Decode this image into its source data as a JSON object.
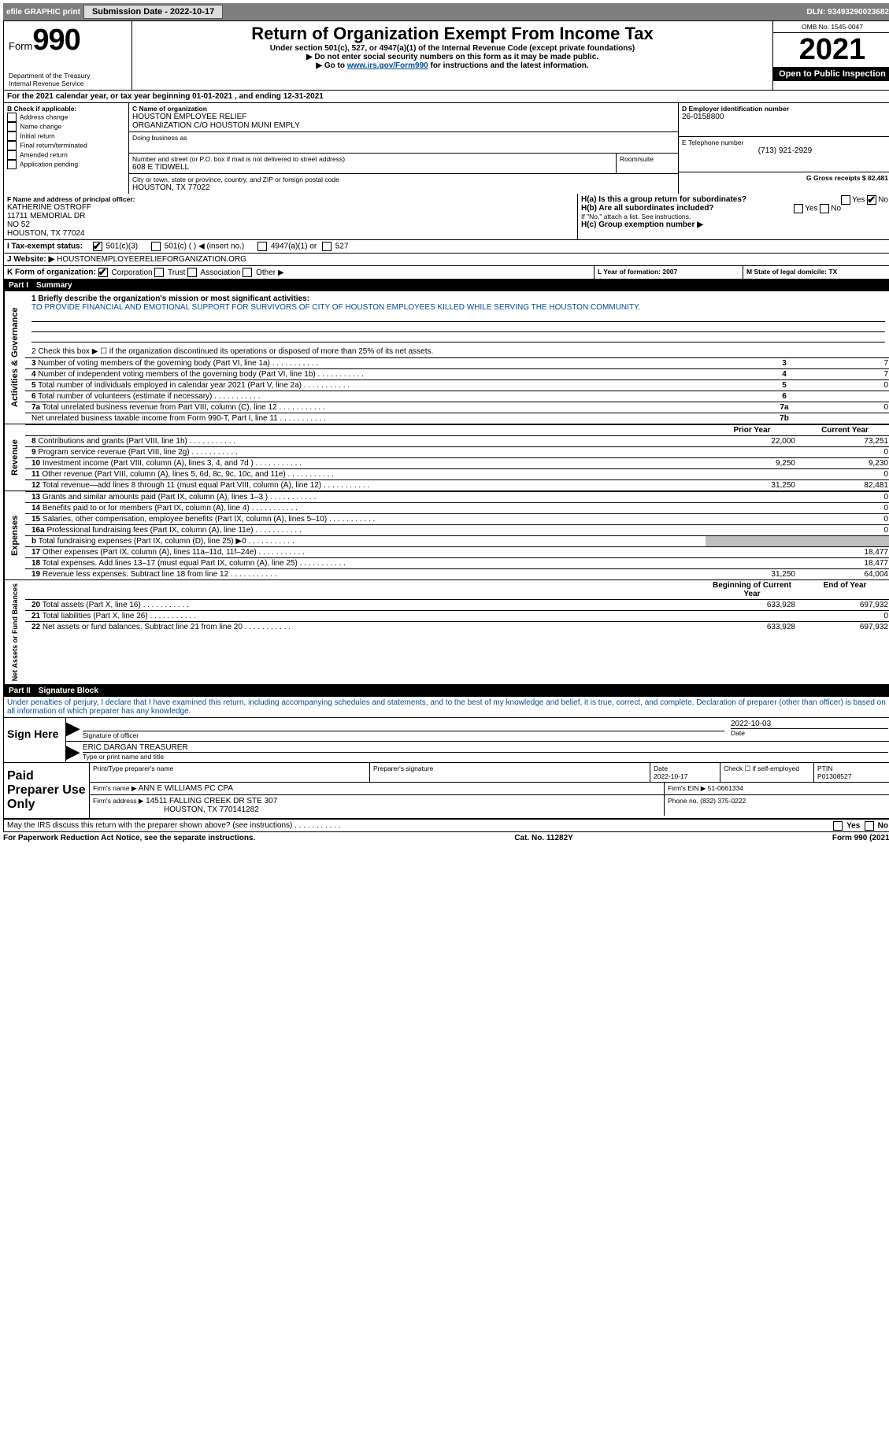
{
  "topbar": {
    "efile": "efile GRAPHIC print",
    "submission_label": "Submission Date - 2022-10-17",
    "dln_label": "DLN: 93493290023682"
  },
  "header": {
    "form_prefix": "Form",
    "form_number": "990",
    "dept": "Department of the Treasury",
    "irs": "Internal Revenue Service",
    "title": "Return of Organization Exempt From Income Tax",
    "subtitle": "Under section 501(c), 527, or 4947(a)(1) of the Internal Revenue Code (except private foundations)",
    "note1": "▶ Do not enter social security numbers on this form as it may be made public.",
    "note2_pre": "▶ Go to ",
    "note2_link": "www.irs.gov/Form990",
    "note2_post": " for instructions and the latest information.",
    "omb": "OMB No. 1545-0047",
    "year": "2021",
    "inspect": "Open to Public Inspection"
  },
  "line_a": "For the 2021 calendar year, or tax year beginning 01-01-2021    , and ending 12-31-2021",
  "section_b": {
    "header": "B Check if applicable:",
    "items": [
      "Address change",
      "Name change",
      "Initial return",
      "Final return/terminated",
      "Amended return",
      "Application pending"
    ]
  },
  "section_c": {
    "label_name": "C Name of organization",
    "name": "HOUSTON EMPLOYEE RELIEF",
    "name2": "ORGANIZATION C/O HOUSTON MUNI EMPLY",
    "dba_label": "Doing business as",
    "street_label": "Number and street (or P.O. box if mail is not delivered to street address)",
    "room_label": "Room/suite",
    "street": "608 E TIDWELL",
    "city_label": "City or town, state or province, country, and ZIP or foreign postal code",
    "city": "HOUSTON, TX  77022"
  },
  "section_d": {
    "label": "D Employer identification number",
    "value": "26-0158800"
  },
  "section_e": {
    "label": "E Telephone number",
    "value": "(713) 921-2929"
  },
  "section_g": {
    "label": "G Gross receipts $ 82,481"
  },
  "section_f": {
    "label": "F  Name and address of principal officer:",
    "name": "KATHERINE OSTROFF",
    "addr1": "11711 MEMORIAL DR",
    "addr2": "NO 52",
    "addr3": "HOUSTON, TX  77024"
  },
  "section_h": {
    "a": "H(a)  Is this a group return for subordinates?",
    "b": "H(b)  Are all subordinates included?",
    "note": "If \"No,\" attach a list. See instructions.",
    "c": "H(c)  Group exemption number ▶"
  },
  "section_i": {
    "label": "I    Tax-exempt status:",
    "opt1": "501(c)(3)",
    "opt2": "501(c) (  ) ◀ (insert no.)",
    "opt3": "4947(a)(1) or",
    "opt4": "527"
  },
  "section_j": {
    "label": "J   Website: ▶",
    "value": "HOUSTONEMPLOYEERELIEFORGANIZATION.ORG"
  },
  "section_k": {
    "label": "K Form of organization:",
    "opts": [
      "Corporation",
      "Trust",
      "Association",
      "Other ▶"
    ]
  },
  "section_l": {
    "label": "L Year of formation: 2007"
  },
  "section_m": {
    "label": "M State of legal domicile: TX"
  },
  "part1": {
    "header_label": "Part I",
    "header_title": "Summary",
    "line1_label": "1  Briefly describe the organization's mission or most significant activities:",
    "line1_text": "TO PROVIDE FINANCIAL AND EMOTIONAL SUPPORT FOR SURVIVORS OF CITY OF HOUSTON EMPLOYEES KILLED WHILE SERVING THE HOUSTON COMMUNITY.",
    "line2": "2   Check this box ▶ ☐  if the organization discontinued its operations or disposed of more than 25% of its net assets.",
    "gov_label": "Activities & Governance",
    "rows_gov": [
      {
        "n": "3",
        "t": "Number of voting members of the governing body (Part VI, line 1a)",
        "box": "3",
        "v": "7"
      },
      {
        "n": "4",
        "t": "Number of independent voting members of the governing body (Part VI, line 1b)",
        "box": "4",
        "v": "7"
      },
      {
        "n": "5",
        "t": "Total number of individuals employed in calendar year 2021 (Part V, line 2a)",
        "box": "5",
        "v": "0"
      },
      {
        "n": "6",
        "t": "Total number of volunteers (estimate if necessary)",
        "box": "6",
        "v": ""
      },
      {
        "n": "7a",
        "t": "Total unrelated business revenue from Part VIII, column (C), line 12",
        "box": "7a",
        "v": "0"
      },
      {
        "n": "",
        "t": "Net unrelated business taxable income from Form 990-T, Part I, line 11",
        "box": "7b",
        "v": ""
      }
    ],
    "col_prior": "Prior Year",
    "col_current": "Current Year",
    "rev_label": "Revenue",
    "rows_rev": [
      {
        "n": "8",
        "t": "Contributions and grants (Part VIII, line 1h)",
        "p": "22,000",
        "c": "73,251"
      },
      {
        "n": "9",
        "t": "Program service revenue (Part VIII, line 2g)",
        "p": "",
        "c": "0"
      },
      {
        "n": "10",
        "t": "Investment income (Part VIII, column (A), lines 3, 4, and 7d )",
        "p": "9,250",
        "c": "9,230"
      },
      {
        "n": "11",
        "t": "Other revenue (Part VIII, column (A), lines 5, 6d, 8c, 9c, 10c, and 11e)",
        "p": "",
        "c": "0"
      },
      {
        "n": "12",
        "t": "Total revenue—add lines 8 through 11 (must equal Part VIII, column (A), line 12)",
        "p": "31,250",
        "c": "82,481"
      }
    ],
    "exp_label": "Expenses",
    "rows_exp": [
      {
        "n": "13",
        "t": "Grants and similar amounts paid (Part IX, column (A), lines 1–3 )",
        "p": "",
        "c": "0"
      },
      {
        "n": "14",
        "t": "Benefits paid to or for members (Part IX, column (A), line 4)",
        "p": "",
        "c": "0"
      },
      {
        "n": "15",
        "t": "Salaries, other compensation, employee benefits (Part IX, column (A), lines 5–10)",
        "p": "",
        "c": "0"
      },
      {
        "n": "16a",
        "t": "Professional fundraising fees (Part IX, column (A), line 11e)",
        "p": "",
        "c": "0"
      },
      {
        "n": "b",
        "t": "Total fundraising expenses (Part IX, column (D), line 25) ▶0",
        "p": "grey",
        "c": "grey"
      },
      {
        "n": "17",
        "t": "Other expenses (Part IX, column (A), lines 11a–11d, 11f–24e)",
        "p": "",
        "c": "18,477"
      },
      {
        "n": "18",
        "t": "Total expenses. Add lines 13–17 (must equal Part IX, column (A), line 25)",
        "p": "",
        "c": "18,477"
      },
      {
        "n": "19",
        "t": "Revenue less expenses. Subtract line 18 from line 12",
        "p": "31,250",
        "c": "64,004"
      }
    ],
    "net_label": "Net Assets or Fund Balances",
    "col_begin": "Beginning of Current Year",
    "col_end": "End of Year",
    "rows_net": [
      {
        "n": "20",
        "t": "Total assets (Part X, line 16)",
        "p": "633,928",
        "c": "697,932"
      },
      {
        "n": "21",
        "t": "Total liabilities (Part X, line 26)",
        "p": "",
        "c": "0"
      },
      {
        "n": "22",
        "t": "Net assets or fund balances. Subtract line 21 from line 20",
        "p": "633,928",
        "c": "697,932"
      }
    ]
  },
  "part2": {
    "header_label": "Part II",
    "header_title": "Signature Block",
    "declaration": "Under penalties of perjury, I declare that I have examined this return, including accompanying schedules and statements, and to the best of my knowledge and belief, it is true, correct, and complete. Declaration of preparer (other than officer) is based on all information of which preparer has any knowledge.",
    "sign_here": "Sign Here",
    "sig_officer": "Signature of officer",
    "sig_date": "2022-10-03",
    "date_label": "Date",
    "officer_name": "ERIC DARGAN  TREASURER",
    "officer_sub": "Type or print name and title",
    "paid": "Paid Preparer Use Only",
    "prep_name_label": "Print/Type preparer's name",
    "prep_sig_label": "Preparer's signature",
    "prep_date_label": "Date",
    "prep_date": "2022-10-17",
    "check_label": "Check ☐ if self-employed",
    "ptin_label": "PTIN",
    "ptin": "P01308527",
    "firm_name_label": "Firm's name     ▶",
    "firm_name": "ANN E WILLIAMS PC CPA",
    "firm_ein_label": "Firm's EIN ▶ 51-0661334",
    "firm_addr_label": "Firm's address ▶",
    "firm_addr1": "14511 FALLING CREEK DR STE 307",
    "firm_addr2": "HOUSTON, TX  770141282",
    "phone_label": "Phone no. (832) 375-0222",
    "may_discuss": "May the IRS discuss this return with the preparer shown above? (see instructions)"
  },
  "footer": {
    "left": "For Paperwork Reduction Act Notice, see the separate instructions.",
    "mid": "Cat. No. 11282Y",
    "right": "Form 990 (2021)"
  }
}
